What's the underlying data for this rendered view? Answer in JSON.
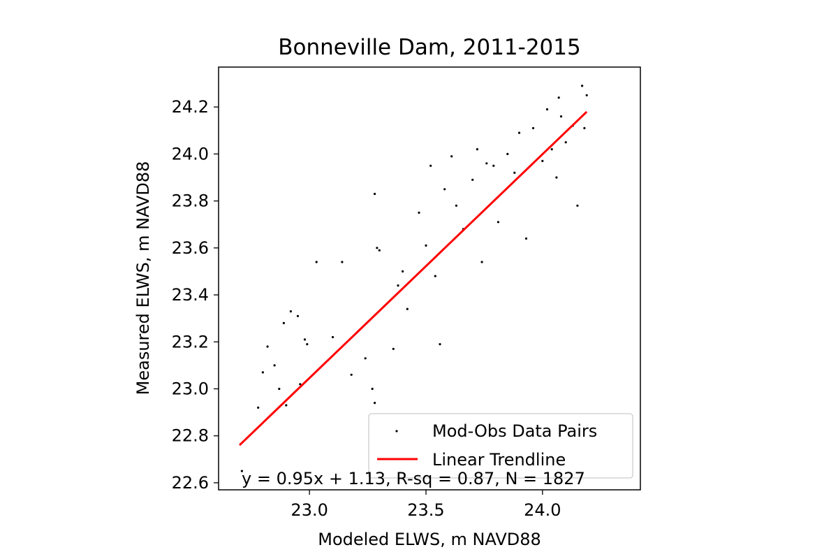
{
  "chart_data": {
    "type": "scatter",
    "title": "Bonneville Dam, 2011-2015",
    "xlabel": "Modeled ELWS, m NAVD88",
    "ylabel": "Measured ELWS, m NAVD88",
    "xlim": [
      22.61,
      24.42
    ],
    "ylim": [
      22.57,
      24.37
    ],
    "xticks": [
      "23.0",
      "23.5",
      "24.0"
    ],
    "xtick_values": [
      23.0,
      23.5,
      24.0
    ],
    "yticks": [
      "22.6",
      "22.8",
      "23.0",
      "23.2",
      "23.4",
      "23.6",
      "23.8",
      "24.0",
      "24.2"
    ],
    "ytick_values": [
      22.6,
      22.8,
      23.0,
      23.2,
      23.4,
      23.6,
      23.8,
      24.0,
      24.2
    ],
    "grid": false,
    "legend_position": "lower-right",
    "series": [
      {
        "name": "Mod-Obs Data Pairs",
        "kind": "scatter",
        "color": "#000000",
        "points": [
          [
            22.71,
            22.65
          ],
          [
            22.78,
            22.92
          ],
          [
            22.8,
            23.07
          ],
          [
            22.82,
            23.18
          ],
          [
            22.85,
            23.1
          ],
          [
            22.87,
            23.0
          ],
          [
            22.89,
            23.28
          ],
          [
            22.9,
            22.93
          ],
          [
            22.92,
            23.33
          ],
          [
            22.95,
            23.31
          ],
          [
            22.96,
            23.02
          ],
          [
            22.98,
            23.21
          ],
          [
            22.99,
            23.19
          ],
          [
            23.03,
            23.54
          ],
          [
            23.1,
            23.22
          ],
          [
            23.14,
            23.54
          ],
          [
            23.18,
            23.06
          ],
          [
            23.24,
            23.13
          ],
          [
            23.27,
            23.0
          ],
          [
            23.28,
            23.83
          ],
          [
            23.28,
            22.94
          ],
          [
            23.29,
            23.6
          ],
          [
            23.3,
            23.59
          ],
          [
            23.36,
            23.17
          ],
          [
            23.38,
            23.44
          ],
          [
            23.4,
            23.5
          ],
          [
            23.42,
            23.34
          ],
          [
            23.47,
            23.75
          ],
          [
            23.5,
            23.61
          ],
          [
            23.52,
            23.95
          ],
          [
            23.54,
            23.48
          ],
          [
            23.56,
            23.19
          ],
          [
            23.58,
            23.85
          ],
          [
            23.61,
            23.99
          ],
          [
            23.63,
            23.78
          ],
          [
            23.66,
            23.68
          ],
          [
            23.7,
            23.89
          ],
          [
            23.72,
            24.02
          ],
          [
            23.74,
            23.54
          ],
          [
            23.76,
            23.96
          ],
          [
            23.79,
            23.95
          ],
          [
            23.81,
            23.71
          ],
          [
            23.85,
            24.0
          ],
          [
            23.88,
            23.92
          ],
          [
            23.9,
            24.09
          ],
          [
            23.93,
            23.64
          ],
          [
            23.96,
            24.11
          ],
          [
            24.0,
            23.97
          ],
          [
            24.02,
            24.19
          ],
          [
            24.04,
            24.02
          ],
          [
            24.06,
            23.9
          ],
          [
            24.07,
            24.24
          ],
          [
            24.08,
            24.16
          ],
          [
            24.1,
            24.05
          ],
          [
            24.13,
            24.12
          ],
          [
            24.15,
            23.78
          ],
          [
            24.17,
            24.29
          ],
          [
            24.18,
            24.11
          ],
          [
            24.19,
            24.25
          ]
        ]
      },
      {
        "name": "Linear Trendline",
        "kind": "line",
        "color": "#ff0000",
        "x": [
          22.7,
          24.19
        ],
        "y": [
          22.76,
          24.18
        ]
      }
    ],
    "annotation": "y = 0.95x + 1.13, R-sq = 0.87, N = 1827"
  }
}
